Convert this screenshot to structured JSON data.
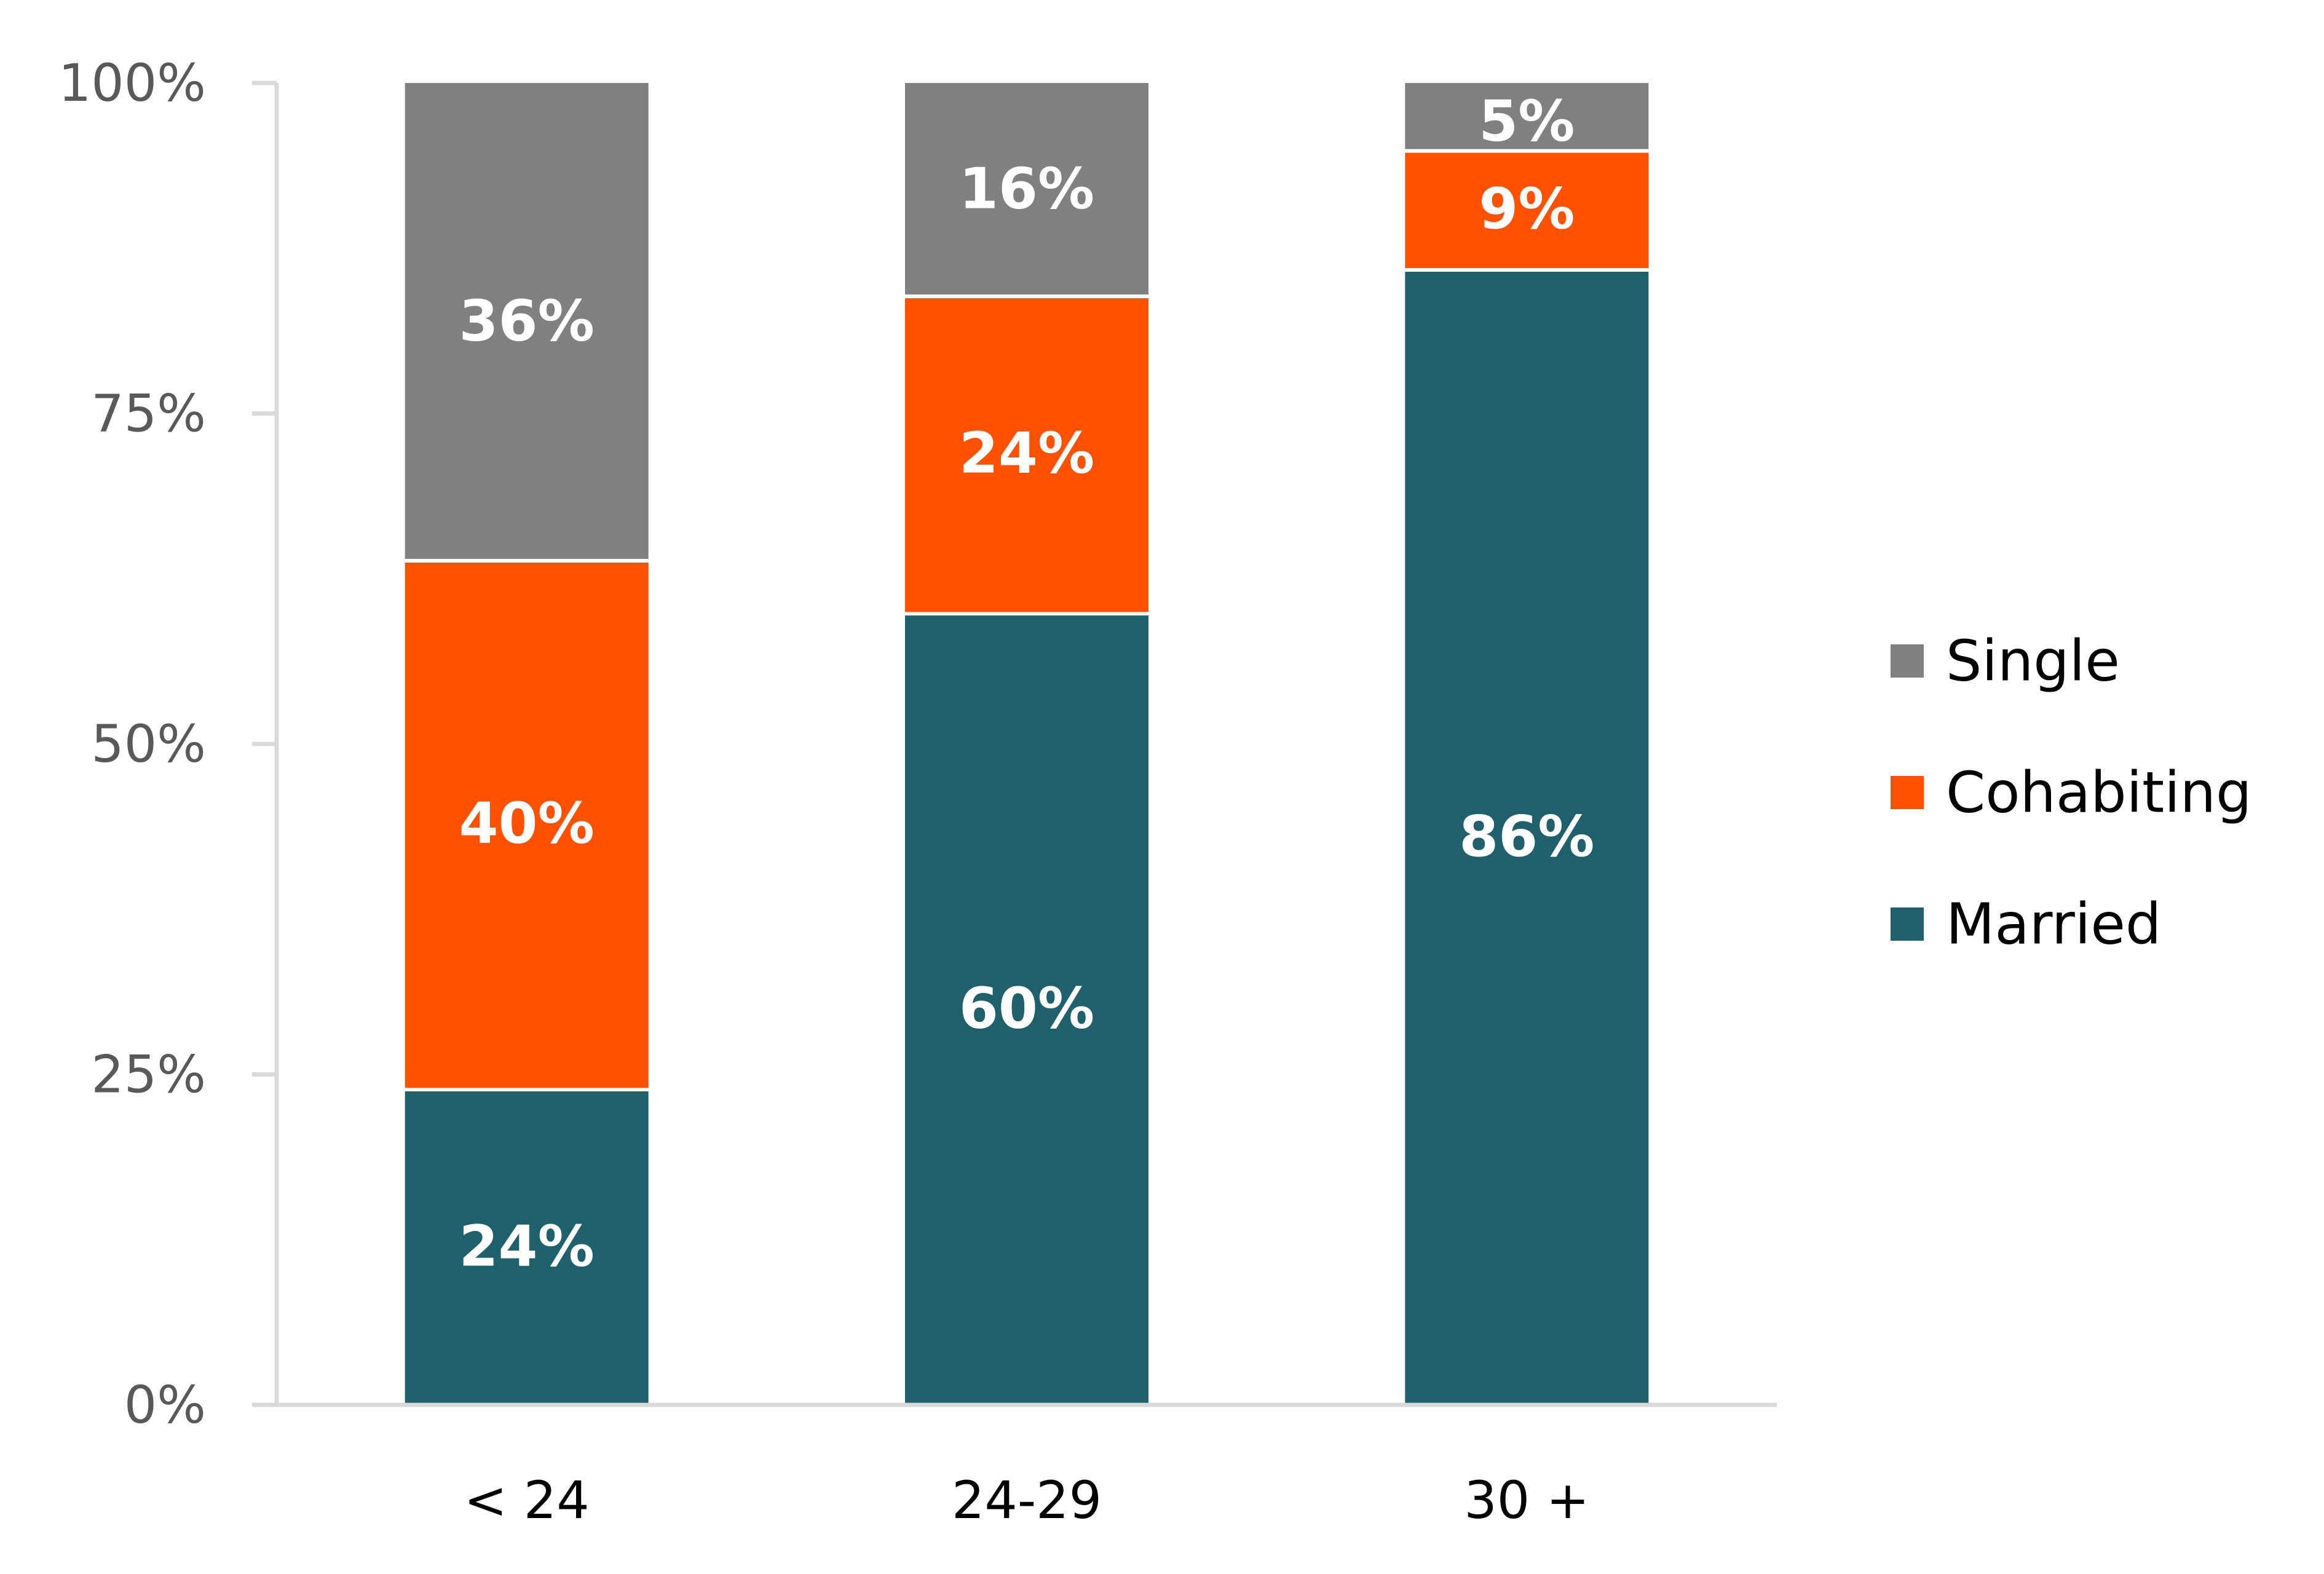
{
  "chart_data": {
    "type": "bar",
    "stacked": true,
    "categories": [
      "< 24",
      "24-29",
      "30 +"
    ],
    "series": [
      {
        "name": "Married",
        "values": [
          24,
          60,
          86
        ],
        "labels": [
          "24%",
          "60%",
          "86%"
        ],
        "color": "#1e606b"
      },
      {
        "name": "Cohabiting",
        "values": [
          40,
          24,
          9
        ],
        "labels": [
          "40%",
          "24%",
          "9%"
        ],
        "color": "#ff5100"
      },
      {
        "name": "Single",
        "values": [
          36,
          16,
          5
        ],
        "labels": [
          "36%",
          "16%",
          "5%"
        ],
        "color": "#808080"
      }
    ],
    "yticks": [
      0,
      25,
      50,
      75,
      100
    ],
    "ytick_labels": [
      "0%",
      "25%",
      "50%",
      "75%",
      "100%"
    ],
    "ylim": [
      0,
      100
    ],
    "title": "",
    "xlabel": "",
    "ylabel": "",
    "grid": false,
    "legend": {
      "placement": "right",
      "entries": [
        "Single",
        "Cohabiting",
        "Married"
      ]
    },
    "axis_color": "#d9d9d9"
  }
}
